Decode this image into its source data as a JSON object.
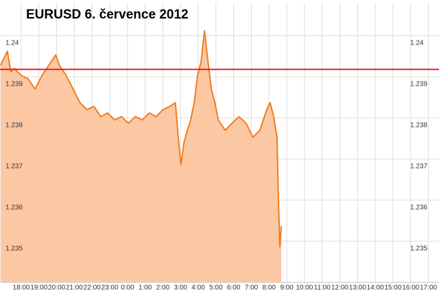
{
  "chart_data": {
    "type": "area",
    "title": "EURUSD 6. července 2012",
    "x": [
      -1.17,
      -0.78,
      -0.59,
      -0.39,
      0,
      0.39,
      0.78,
      1.17,
      1.56,
      1.95,
      2.15,
      2.54,
      2.93,
      3.32,
      3.71,
      4.1,
      4.49,
      4.88,
      5.27,
      5.66,
      6.05,
      6.45,
      6.84,
      7.23,
      7.62,
      8.01,
      8.4,
      8.71,
      8.87,
      9.02,
      9.18,
      9.38,
      9.57,
      9.77,
      9.96,
      10.16,
      10.35,
      10.55,
      10.74,
      10.94,
      11.13,
      11.52,
      11.91,
      12.3,
      12.7,
      13.09,
      13.48,
      13.87,
      14.06,
      14.26,
      14.45,
      14.53,
      14.61,
      14.69
    ],
    "series": [
      {
        "name": "EURUSD",
        "color": "#f07c1e",
        "fill": "#fcc7a3",
        "values": [
          1.23928,
          1.23962,
          1.23912,
          1.2392,
          1.23903,
          1.23895,
          1.2387,
          1.23903,
          1.23928,
          1.23953,
          1.23928,
          1.23903,
          1.2387,
          1.23837,
          1.2382,
          1.23828,
          1.23803,
          1.23812,
          1.23795,
          1.23803,
          1.23787,
          1.23803,
          1.23795,
          1.23812,
          1.23803,
          1.2382,
          1.23828,
          1.23837,
          1.23753,
          1.23687,
          1.23737,
          1.2377,
          1.23795,
          1.23837,
          1.23903,
          1.23937,
          1.24012,
          1.23937,
          1.2387,
          1.23837,
          1.23795,
          1.2377,
          1.23787,
          1.23803,
          1.23787,
          1.23753,
          1.2377,
          1.2382,
          1.23837,
          1.23803,
          1.23753,
          1.23603,
          1.23487,
          1.23537
        ]
      }
    ],
    "reference_line": {
      "value": 1.23918,
      "color": "#e0202a"
    },
    "xlim": [
      -1.2,
      23.6
    ],
    "xticks": [
      {
        "value": 0,
        "label": "18:00"
      },
      {
        "value": 1,
        "label": "19:00"
      },
      {
        "value": 2,
        "label": "20:00"
      },
      {
        "value": 3,
        "label": "21:00"
      },
      {
        "value": 4,
        "label": "22:00"
      },
      {
        "value": 5,
        "label": "23:00"
      },
      {
        "value": 6,
        "label": "0:00"
      },
      {
        "value": 7,
        "label": "1:00"
      },
      {
        "value": 8,
        "label": "2:00"
      },
      {
        "value": 9,
        "label": "3:00"
      },
      {
        "value": 10,
        "label": "4:00"
      },
      {
        "value": 11,
        "label": "5:00"
      },
      {
        "value": 12,
        "label": "6:00"
      },
      {
        "value": 13,
        "label": "7:00"
      },
      {
        "value": 14,
        "label": "8:00"
      },
      {
        "value": 15,
        "label": "9:00"
      },
      {
        "value": 16,
        "label": "10:00"
      },
      {
        "value": 17,
        "label": "11:00"
      },
      {
        "value": 18,
        "label": "12:00"
      },
      {
        "value": 19,
        "label": "13:00"
      },
      {
        "value": 20,
        "label": "14:00"
      },
      {
        "value": 21,
        "label": "15:00"
      },
      {
        "value": 22,
        "label": "16:00"
      },
      {
        "value": 23,
        "label": "17:00"
      }
    ],
    "ylim": [
      1.234,
      1.2408
    ],
    "yticks": [
      {
        "value": 1.24,
        "label": "1.24"
      },
      1.239,
      1.238,
      1.237,
      1.236,
      1.235
    ],
    "grid": true
  }
}
